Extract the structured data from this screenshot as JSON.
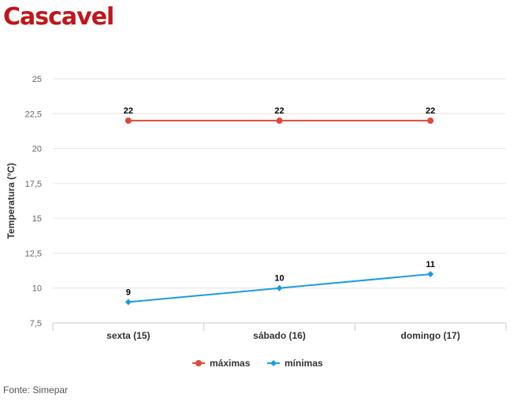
{
  "title": "Cascavel",
  "source": "Fonte: Simepar",
  "chart_data": {
    "type": "line",
    "categories": [
      "sexta (15)",
      "sábado (16)",
      "domingo (17)"
    ],
    "series": [
      {
        "name": "máximas",
        "values": [
          22,
          22,
          22
        ],
        "color": "#e2463c",
        "marker": "circle"
      },
      {
        "name": "mínimas",
        "values": [
          9,
          10,
          11
        ],
        "color": "#1a9be6",
        "marker": "diamond"
      }
    ],
    "ylabel": "Temperatura (°C)",
    "xlabel": "",
    "ylim": [
      7.5,
      25
    ],
    "yticks": [
      "7,5",
      "10",
      "12,5",
      "15",
      "17,5",
      "20",
      "22,5",
      "25"
    ],
    "yticks_values": [
      7.5,
      10,
      12.5,
      15,
      17.5,
      20,
      22.5,
      25
    ],
    "grid": true,
    "legend": "bottom-center"
  }
}
